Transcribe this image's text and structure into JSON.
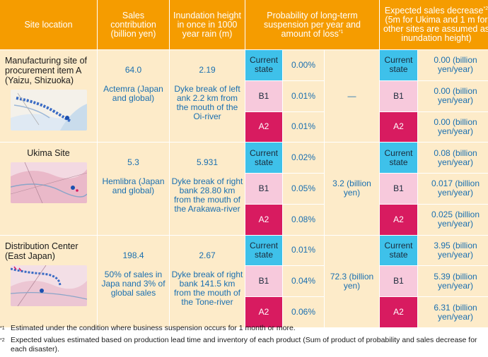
{
  "headers": {
    "site_location": "Site location",
    "sales_contribution": "Sales contribution (billion yen)",
    "inundation_height": "Inundation height in once in 1000 year rain (m)",
    "probability": "Probability of long-term suspension per year and amount of loss",
    "probability_sup": "*1",
    "expected_decrease": "Expected sales decrease",
    "expected_decrease_sup": "*2",
    "expected_decrease_sub": "(5m for Ukima and 1 m for other sites are assumed as inundation height)"
  },
  "scenario_labels": {
    "current": "Current state",
    "b1": "B1",
    "a2": "A2"
  },
  "sites": [
    {
      "name": "Manufacturing site of procurement item A (Yaizu, Shizuoka)",
      "sales_value": "64.0",
      "sales_desc": "Actemra (Japan and global)",
      "height_value": "2.19",
      "height_desc": "Dyke break of left ank 2.2 km from the mouth of the Oi-river",
      "probabilities": [
        "0.00%",
        "0.01%",
        "0.01%"
      ],
      "loss": "—",
      "decreases": [
        "0.00 (billion yen/year)",
        "0.00 (billion yen/year)",
        "0.00 (billion yen/year)"
      ]
    },
    {
      "name": "Ukima Site",
      "sales_value": "5.3",
      "sales_desc": "Hemlibra (Japan and global)",
      "height_value": "5.931",
      "height_desc": "Dyke break of right bank 28.80 km from the mouth of the Arakawa-river",
      "probabilities": [
        "0.02%",
        "0.05%",
        "0.08%"
      ],
      "loss": "3.2 (billion yen)",
      "decreases": [
        "0.08 (billion yen/year)",
        "0.017 (billion yen/year)",
        "0.025 (billion yen/year)"
      ]
    },
    {
      "name": "Distribution Center (East Japan)",
      "sales_value": "198.4",
      "sales_desc": "50% of sales in Japa nand 3% of global sales",
      "height_value": "2.67",
      "height_desc": "Dyke break of right bank 141.5 km from the mouth of the Tone-river",
      "probabilities": [
        "0.01%",
        "0.04%",
        "0.06%"
      ],
      "loss": "72.3 (billion yen)",
      "decreases": [
        "3.95 (billion yen/year)",
        "5.39 (billion yen/year)",
        "6.31 (billion yen/year)"
      ]
    }
  ],
  "notes": [
    {
      "mark": "*1",
      "text": "Estimated under the condition where business suspension occurs for 1 month or more."
    },
    {
      "mark": "*2",
      "text": "Expected values estimated based on production lead time and inventory of each product (Sum of product of probability and sales decrease for each disaster)."
    }
  ],
  "colors": {
    "header": "#f59c00",
    "cream": "#fdebc9",
    "current_state": "#3ec1ea",
    "b1": "#f7c9dc",
    "a2": "#d81b60",
    "value_text": "#1a6fb0"
  }
}
